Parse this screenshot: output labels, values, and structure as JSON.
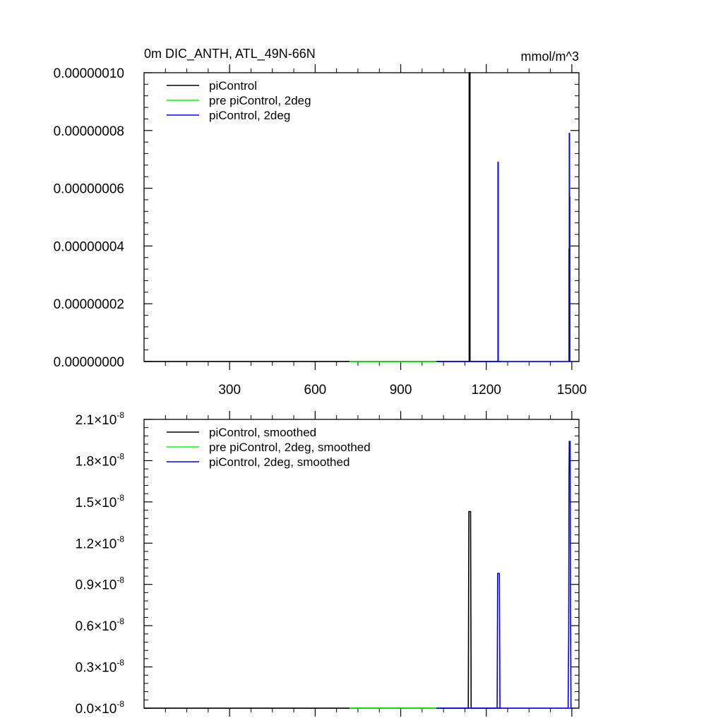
{
  "chart_data": [
    {
      "type": "line",
      "title": "0m DIC_ANTH, ATL_49N-66N",
      "units": "mmol/m^3",
      "xlim": [
        0,
        1525
      ],
      "ylim": [
        0,
        1e-07
      ],
      "xticks": [
        300,
        600,
        900,
        1200,
        1500
      ],
      "yticks": [
        0,
        2e-08,
        4e-08,
        6e-08,
        8e-08,
        1e-07
      ],
      "ytick_labels": [
        "0.00000000",
        "0.00000002",
        "0.00000004",
        "0.00000006",
        "0.00000008",
        "0.00000010"
      ],
      "legend_position": "top-left",
      "series": [
        {
          "name": "piControl",
          "color": "#000000",
          "x": [
            0,
            1140,
            1140,
            1141,
            1141,
            1143,
            1143,
            1250
          ],
          "y": [
            0,
            0,
            1e-07,
            1e-07,
            1e-07,
            1e-07,
            0,
            0
          ]
        },
        {
          "name": "pre piControl, 2deg",
          "color": "#00ff00",
          "x": [
            720,
            1025
          ],
          "y": [
            0,
            0
          ]
        },
        {
          "name": "piControl, 2deg",
          "color": "#0000ff",
          "x": [
            1025,
            1241,
            1241,
            1242,
            1242,
            1490,
            1490,
            1491,
            1491,
            1492,
            1492,
            1493,
            1493,
            1495,
            1495,
            1500
          ],
          "y": [
            0,
            0,
            6.9e-08,
            6.9e-08,
            0,
            0,
            3.9e-08,
            3.9e-08,
            7.9e-08,
            7.9e-08,
            5.7e-08,
            5.7e-08,
            0,
            0,
            0,
            0
          ]
        }
      ]
    },
    {
      "type": "line",
      "ylim": [
        0,
        2.1e-08
      ],
      "xlim": [
        0,
        1525
      ],
      "ytick_labels": [
        {
          "mant": "0.0",
          "exp": "-8"
        },
        {
          "mant": "0.3",
          "exp": "-8"
        },
        {
          "mant": "0.6",
          "exp": "-8"
        },
        {
          "mant": "0.9",
          "exp": "-8"
        },
        {
          "mant": "1.2",
          "exp": "-8"
        },
        {
          "mant": "1.5",
          "exp": "-8"
        },
        {
          "mant": "1.8",
          "exp": "-8"
        },
        {
          "mant": "2.1",
          "exp": "-8"
        }
      ],
      "times_symbol": "×",
      "base": "10",
      "legend_position": "top-left",
      "series": [
        {
          "name": "piControl, smoothed",
          "color": "#000000",
          "x": [
            0,
            1137,
            1139,
            1145,
            1147,
            1250
          ],
          "y": [
            0,
            0,
            1.43e-08,
            1.43e-08,
            0,
            0
          ]
        },
        {
          "name": "pre piControl, 2deg, smoothed",
          "color": "#00ff00",
          "x": [
            720,
            1025
          ],
          "y": [
            0,
            0
          ]
        },
        {
          "name": "piControl, 2deg, smoothed",
          "color": "#0000ff",
          "x": [
            1025,
            1238,
            1240,
            1246,
            1248,
            1487,
            1489,
            1490,
            1491,
            1494,
            1495,
            1497,
            1500
          ],
          "y": [
            0,
            0,
            9.8e-09,
            9.8e-09,
            0,
            0,
            5.5e-09,
            1.68e-08,
            1.94e-08,
            1.94e-08,
            8e-09,
            0,
            0
          ]
        }
      ]
    }
  ]
}
